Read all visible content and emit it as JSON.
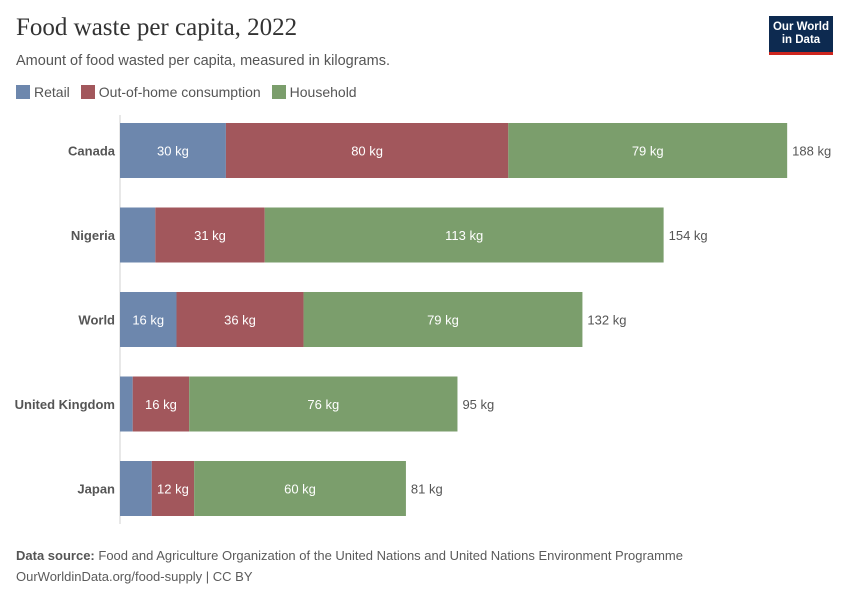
{
  "header": {
    "title": "Food waste per capita, 2022",
    "subtitle": "Amount of food wasted per capita, measured in kilograms.",
    "logo_line1": "Our World",
    "logo_line2": "in Data"
  },
  "footer": {
    "source_label": "Data source:",
    "source_text": "Food and Agriculture Organization of the United Nations and United Nations Environment Programme",
    "url_text": "OurWorldinData.org/food-supply | CC BY"
  },
  "chart_data": {
    "type": "bar",
    "orientation": "horizontal",
    "stacked": true,
    "unit": "kg",
    "categories": [
      "Canada",
      "Nigeria",
      "World",
      "United Kingdom",
      "Japan"
    ],
    "series": [
      {
        "name": "Retail",
        "color": "#6d87ad",
        "values": [
          30,
          10,
          16,
          3.6,
          9
        ],
        "labels": [
          "30 kg",
          "",
          "16 kg",
          "",
          ""
        ]
      },
      {
        "name": "Out-of-home consumption",
        "color": "#a2575c",
        "values": [
          80,
          31,
          36,
          16,
          12
        ],
        "labels": [
          "80 kg",
          "31 kg",
          "36 kg",
          "16 kg",
          "12 kg"
        ]
      },
      {
        "name": "Household",
        "color": "#7b9e6c",
        "values": [
          79,
          113,
          79,
          76,
          60
        ],
        "labels": [
          "79 kg",
          "113 kg",
          "79 kg",
          "76 kg",
          "60 kg"
        ]
      }
    ],
    "totals": [
      "188 kg",
      "154 kg",
      "132 kg",
      "95 kg",
      "81 kg"
    ],
    "xlim": [
      0,
      188
    ],
    "legend_position": "top-left",
    "grid": false
  }
}
